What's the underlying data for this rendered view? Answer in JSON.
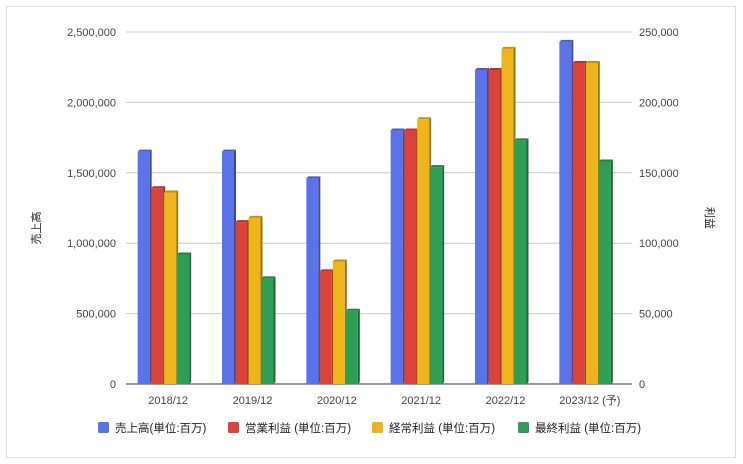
{
  "chart_data": {
    "type": "bar",
    "categories": [
      "2018/12",
      "2019/12",
      "2020/12",
      "2021/12",
      "2022/12",
      "2023/12 (予)"
    ],
    "left_axis": {
      "label": "売上高",
      "ylim": [
        0,
        2500000
      ],
      "ticks": [
        "0",
        "500,000",
        "1,000,000",
        "1,500,000",
        "2,000,000",
        "2,500,000"
      ]
    },
    "right_axis": {
      "label": "利益",
      "ylim": [
        0,
        250000
      ],
      "ticks": [
        "0",
        "50,000",
        "100,000",
        "150,000",
        "200,000",
        "250,000"
      ]
    },
    "series": [
      {
        "name": "売上高(単位:百万)",
        "axis": "left",
        "color": "#5b73e8",
        "values": [
          1650000,
          1650000,
          1460000,
          1800000,
          2230000,
          2430000
        ]
      },
      {
        "name": "営業利益 (単位:百万)",
        "axis": "right",
        "color": "#d9443a",
        "values": [
          139000,
          115000,
          80000,
          180000,
          223000,
          228000
        ]
      },
      {
        "name": "経常利益 (単位:百万)",
        "axis": "right",
        "color": "#eeb41c",
        "values": [
          136000,
          118000,
          87000,
          188000,
          238000,
          228000
        ]
      },
      {
        "name": "最終利益 (単位:百万)",
        "axis": "right",
        "color": "#2f9e55",
        "values": [
          92000,
          75000,
          52000,
          154000,
          173000,
          158000
        ]
      }
    ],
    "grid": true,
    "legend_position": "bottom"
  }
}
